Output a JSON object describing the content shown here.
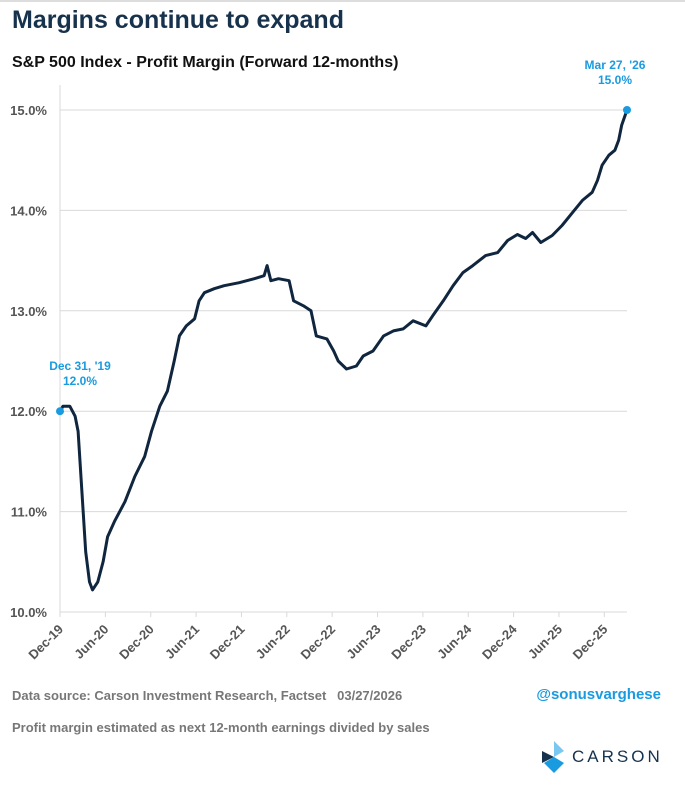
{
  "header": {
    "title": "Margins continue to expand"
  },
  "chart_data": {
    "type": "line",
    "title": "S&P 500 Index - Profit Margin (Forward 12-months)",
    "xlabel": "",
    "ylabel": "",
    "x_unit": "months since Dec-2019",
    "xlim": [
      0,
      75
    ],
    "ylim": [
      10.0,
      15.0
    ],
    "yticks": [
      "10.0%",
      "11.0%",
      "12.0%",
      "13.0%",
      "14.0%",
      "15.0%"
    ],
    "ytick_values": [
      10,
      11,
      12,
      13,
      14,
      15
    ],
    "xticks": [
      "Dec-19",
      "Jun-20",
      "Dec-20",
      "Jun-21",
      "Dec-21",
      "Jun-22",
      "Dec-22",
      "Jun-23",
      "Dec-23",
      "Jun-24",
      "Dec-24",
      "Jun-25",
      "Dec-25"
    ],
    "xtick_values": [
      0,
      6,
      12,
      18,
      24,
      30,
      36,
      42,
      48,
      54,
      60,
      66,
      72
    ],
    "grid": true,
    "line_color": "#10263f",
    "annotation_color": "#1a9be0",
    "series": [
      {
        "name": "Profit Margin",
        "points": [
          [
            0,
            12.0
          ],
          [
            0.4,
            12.05
          ],
          [
            1.3,
            12.05
          ],
          [
            2,
            11.95
          ],
          [
            2.4,
            11.8
          ],
          [
            2.9,
            11.2
          ],
          [
            3.4,
            10.6
          ],
          [
            3.9,
            10.3
          ],
          [
            4.3,
            10.22
          ],
          [
            5,
            10.3
          ],
          [
            5.7,
            10.5
          ],
          [
            6.3,
            10.75
          ],
          [
            7.2,
            10.9
          ],
          [
            8.6,
            11.1
          ],
          [
            9.9,
            11.35
          ],
          [
            11.2,
            11.55
          ],
          [
            12.1,
            11.8
          ],
          [
            13.2,
            12.05
          ],
          [
            14.2,
            12.2
          ],
          [
            15.1,
            12.5
          ],
          [
            15.8,
            12.75
          ],
          [
            16.7,
            12.85
          ],
          [
            17.8,
            12.92
          ],
          [
            18.4,
            13.1
          ],
          [
            19.1,
            13.18
          ],
          [
            20.4,
            13.22
          ],
          [
            21.7,
            13.25
          ],
          [
            23.7,
            13.28
          ],
          [
            25.7,
            13.32
          ],
          [
            27,
            13.35
          ],
          [
            27.4,
            13.45
          ],
          [
            27.9,
            13.3
          ],
          [
            28.9,
            13.32
          ],
          [
            30.3,
            13.3
          ],
          [
            30.9,
            13.1
          ],
          [
            32.2,
            13.05
          ],
          [
            33.2,
            13.0
          ],
          [
            33.9,
            12.75
          ],
          [
            35.3,
            12.72
          ],
          [
            36.2,
            12.6
          ],
          [
            36.8,
            12.5
          ],
          [
            37.9,
            12.42
          ],
          [
            39.2,
            12.45
          ],
          [
            40.1,
            12.55
          ],
          [
            41.4,
            12.6
          ],
          [
            42.8,
            12.75
          ],
          [
            44.1,
            12.8
          ],
          [
            45.4,
            12.82
          ],
          [
            46.7,
            12.9
          ],
          [
            48.4,
            12.85
          ],
          [
            49.3,
            12.95
          ],
          [
            50.7,
            13.1
          ],
          [
            52,
            13.25
          ],
          [
            53.3,
            13.38
          ],
          [
            54.6,
            13.45
          ],
          [
            56.3,
            13.55
          ],
          [
            57.9,
            13.58
          ],
          [
            59.2,
            13.7
          ],
          [
            60.5,
            13.76
          ],
          [
            61.6,
            13.72
          ],
          [
            62.5,
            13.78
          ],
          [
            63.6,
            13.68
          ],
          [
            65.1,
            13.75
          ],
          [
            66.4,
            13.85
          ],
          [
            67.8,
            13.98
          ],
          [
            69.1,
            14.1
          ],
          [
            70.4,
            14.18
          ],
          [
            71.1,
            14.3
          ],
          [
            71.7,
            14.45
          ],
          [
            72.6,
            14.55
          ],
          [
            73.4,
            14.6
          ],
          [
            73.9,
            14.7
          ],
          [
            74.3,
            14.85
          ],
          [
            75,
            15.0
          ]
        ]
      }
    ],
    "annotations": [
      {
        "x": 0,
        "y": 12.0,
        "date": "Dec 31, '19",
        "value": "12.0%"
      },
      {
        "x": 75,
        "y": 15.0,
        "date": "Mar 27, '26",
        "value": "15.0%"
      }
    ]
  },
  "footer": {
    "source": "Data source: Carson Investment Research, Factset   03/27/2026",
    "handle": "@sonusvarghese",
    "note": "Profit margin estimated as next 12-month earnings divided by sales",
    "logo_text": "CARSON"
  }
}
